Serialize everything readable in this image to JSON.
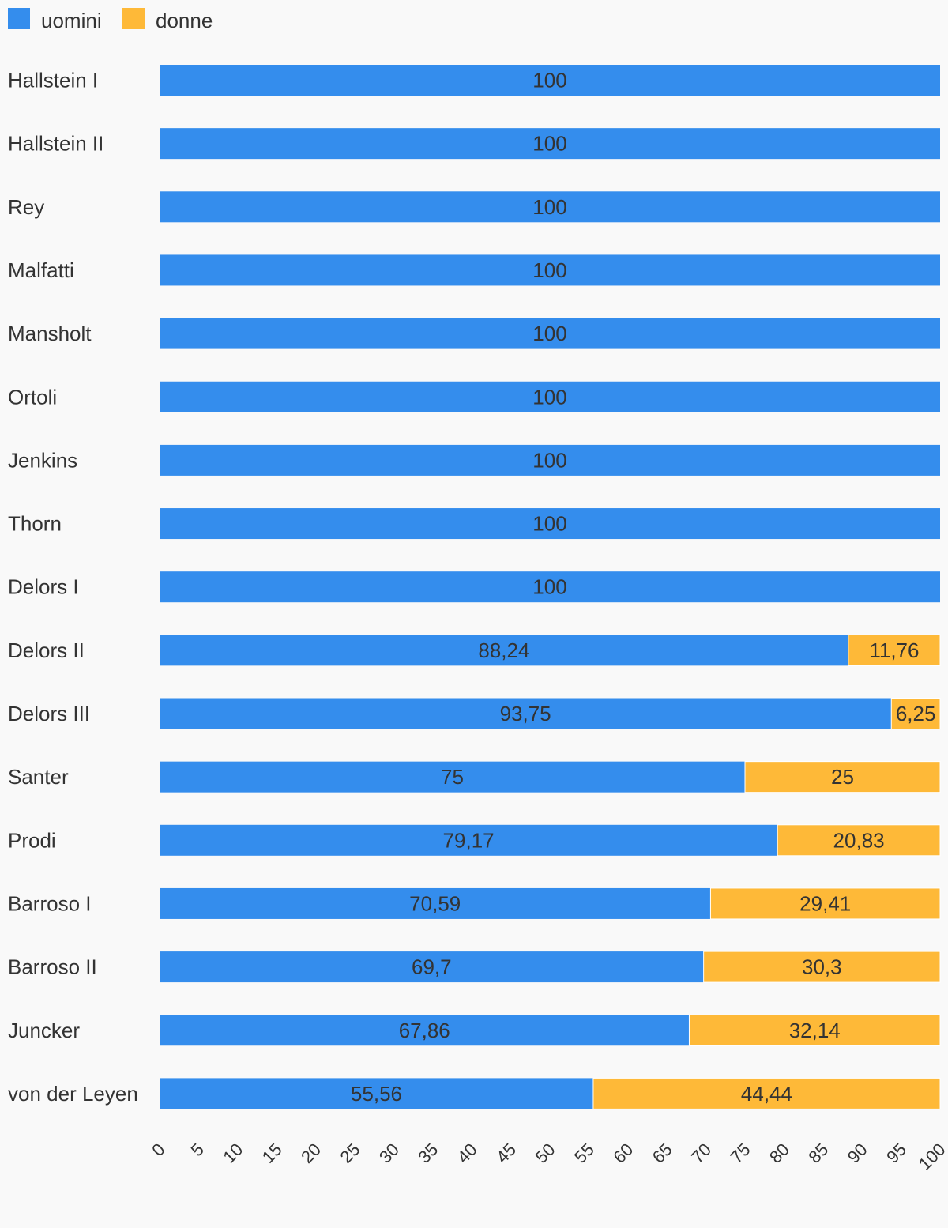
{
  "chart_data": {
    "type": "bar",
    "orientation": "horizontal",
    "stacked": true,
    "legend_position": "top-left",
    "grid": false,
    "xlim": [
      0,
      100
    ],
    "ticks": [
      "0",
      "5",
      "10",
      "15",
      "20",
      "25",
      "30",
      "35",
      "40",
      "45",
      "50",
      "55",
      "60",
      "65",
      "70",
      "75",
      "80",
      "85",
      "90",
      "95",
      "100"
    ],
    "categories": [
      "Hallstein I",
      "Hallstein II",
      "Rey",
      "Malfatti",
      "Mansholt",
      "Ortoli",
      "Jenkins",
      "Thorn",
      "Delors I",
      "Delors II",
      "Delors III",
      "Santer",
      "Prodi",
      "Barroso I",
      "Barroso II",
      "Juncker",
      "von der Leyen"
    ],
    "series": [
      {
        "name": "uomini",
        "color": "#348ded",
        "values": [
          100,
          100,
          100,
          100,
          100,
          100,
          100,
          100,
          100,
          88.24,
          93.75,
          75,
          79.17,
          70.59,
          69.7,
          67.86,
          55.56
        ],
        "labels": [
          "100",
          "100",
          "100",
          "100",
          "100",
          "100",
          "100",
          "100",
          "100",
          "88,24",
          "93,75",
          "75",
          "79,17",
          "70,59",
          "69,7",
          "67,86",
          "55,56"
        ]
      },
      {
        "name": "donne",
        "color": "#feb938",
        "values": [
          0,
          0,
          0,
          0,
          0,
          0,
          0,
          0,
          0,
          11.76,
          6.25,
          25,
          20.83,
          29.41,
          30.3,
          32.14,
          44.44
        ],
        "labels": [
          "",
          "",
          "",
          "",
          "",
          "",
          "",
          "",
          "",
          "11,76",
          "6,25",
          "25",
          "20,83",
          "29,41",
          "30,3",
          "32,14",
          "44,44"
        ]
      }
    ]
  }
}
